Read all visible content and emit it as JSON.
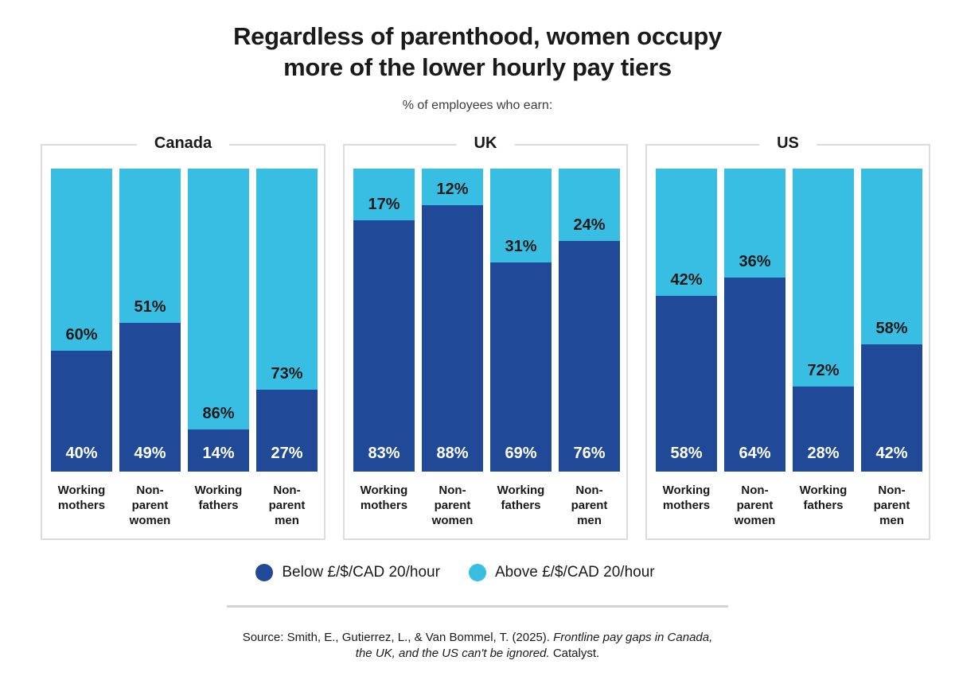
{
  "title": {
    "line1": "Regardless of parenthood, women occupy",
    "line2": "more of the lower hourly pay tiers"
  },
  "subtitle": "% of employees who earn:",
  "colors": {
    "below": "#204A97",
    "above": "#38BEE3",
    "panel_border": "#DCDCDC",
    "divider": "#D4D4D4",
    "text_dark": "#1A1A1A",
    "label_on_dark": "#FFFFFF"
  },
  "legend": {
    "items": [
      {
        "label": "Below £/$/CAD 20/hour",
        "color_key": "below"
      },
      {
        "label": "Above £/$/CAD 20/hour",
        "color_key": "above"
      }
    ]
  },
  "source": {
    "lines": [
      [
        {
          "text": "Source: Smith, E., Gutierrez, L., & Van Bommel, T. (2025). ",
          "italic": false
        },
        {
          "text": "Frontline pay gaps in Canada,",
          "italic": true
        }
      ],
      [
        {
          "text": "the UK, and the US can't be ignored.",
          "italic": true
        },
        {
          "text": " Catalyst.",
          "italic": false
        }
      ]
    ]
  },
  "chart_data": [
    {
      "type": "bar",
      "stacked": true,
      "title": "Canada",
      "categories": [
        "Working mothers",
        "Non-parent women",
        "Working fathers",
        "Non-parent men"
      ],
      "category_label_lines": [
        [
          "Working",
          "mothers"
        ],
        [
          "Non-",
          "parent",
          "women"
        ],
        [
          "Working",
          "fathers"
        ],
        [
          "Non-",
          "parent",
          "men"
        ]
      ],
      "series": [
        {
          "name": "Below £/$/CAD 20/hour",
          "values": [
            40,
            49,
            14,
            27
          ]
        },
        {
          "name": "Above £/$/CAD 20/hour",
          "values": [
            60,
            51,
            86,
            73
          ]
        }
      ],
      "unit": "%",
      "ylim": [
        0,
        100
      ],
      "grid": false,
      "legend_position": "bottom"
    },
    {
      "type": "bar",
      "stacked": true,
      "title": "UK",
      "categories": [
        "Working mothers",
        "Non-parent women",
        "Working fathers",
        "Non-parent men"
      ],
      "category_label_lines": [
        [
          "Working",
          "mothers"
        ],
        [
          "Non-",
          "parent",
          "women"
        ],
        [
          "Working",
          "fathers"
        ],
        [
          "Non-",
          "parent",
          "men"
        ]
      ],
      "series": [
        {
          "name": "Below £/$/CAD 20/hour",
          "values": [
            83,
            88,
            69,
            76
          ]
        },
        {
          "name": "Above £/$/CAD 20/hour",
          "values": [
            17,
            12,
            31,
            24
          ]
        }
      ],
      "unit": "%",
      "ylim": [
        0,
        100
      ],
      "grid": false,
      "legend_position": "bottom"
    },
    {
      "type": "bar",
      "stacked": true,
      "title": "US",
      "categories": [
        "Working mothers",
        "Non-parent women",
        "Working fathers",
        "Non-parent men"
      ],
      "category_label_lines": [
        [
          "Working",
          "mothers"
        ],
        [
          "Non-",
          "parent",
          "women"
        ],
        [
          "Working",
          "fathers"
        ],
        [
          "Non-",
          "parent",
          "men"
        ]
      ],
      "series": [
        {
          "name": "Below £/$/CAD 20/hour",
          "values": [
            58,
            64,
            28,
            42
          ]
        },
        {
          "name": "Above £/$/CAD 20/hour",
          "values": [
            42,
            36,
            72,
            58
          ]
        }
      ],
      "unit": "%",
      "ylim": [
        0,
        100
      ],
      "grid": false,
      "legend_position": "bottom"
    }
  ]
}
